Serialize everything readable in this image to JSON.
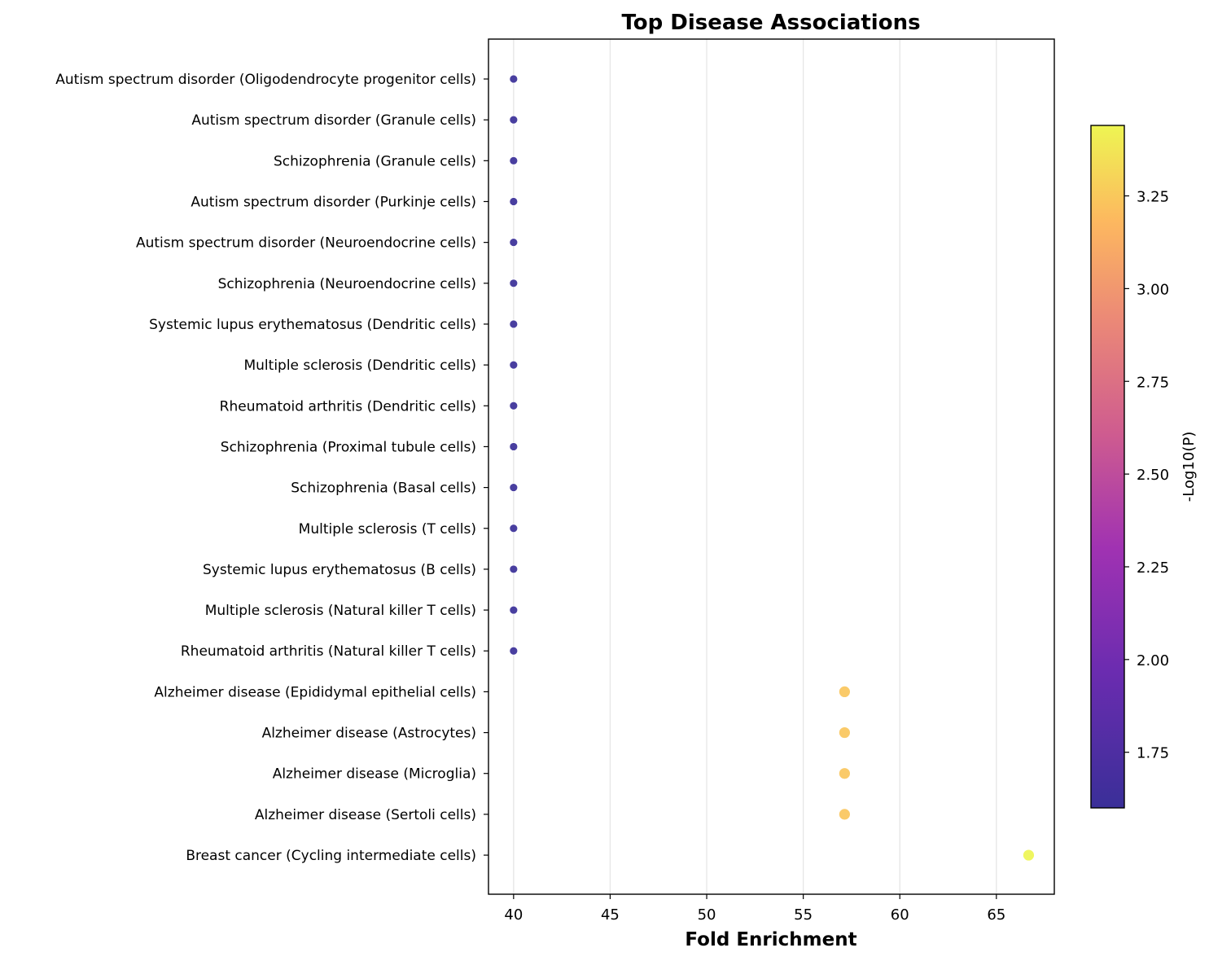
{
  "chart_data": {
    "type": "scatter",
    "title": "Top Disease Associations",
    "xlabel": "Fold Enrichment",
    "ylabel": "",
    "xlim": [
      38.7,
      68.0
    ],
    "xticks": [
      40,
      45,
      50,
      55,
      60,
      65
    ],
    "grid": "vertical",
    "categories": [
      "Autism spectrum disorder (Oligodendrocyte progenitor cells)",
      "Autism spectrum disorder (Granule cells)",
      "Schizophrenia (Granule cells)",
      "Autism spectrum disorder (Purkinje cells)",
      "Autism spectrum disorder (Neuroendocrine cells)",
      "Schizophrenia (Neuroendocrine cells)",
      "Systemic lupus erythematosus (Dendritic cells)",
      "Multiple sclerosis (Dendritic cells)",
      "Rheumatoid arthritis (Dendritic cells)",
      "Schizophrenia (Proximal tubule cells)",
      "Schizophrenia (Basal cells)",
      "Multiple sclerosis (T cells)",
      "Systemic lupus erythematosus (B cells)",
      "Multiple sclerosis (Natural killer T cells)",
      "Rheumatoid arthritis (Natural killer T cells)",
      "Alzheimer disease (Epididymal epithelial cells)",
      "Alzheimer disease (Astrocytes)",
      "Alzheimer disease (Microglia)",
      "Alzheimer disease (Sertoli cells)",
      "Breast cancer (Cycling intermediate cells)"
    ],
    "x": [
      40,
      40,
      40,
      40,
      40,
      40,
      40,
      40,
      40,
      40,
      40,
      40,
      40,
      40,
      40,
      57.14,
      57.14,
      57.14,
      57.14,
      66.67
    ],
    "color_values": [
      1.6,
      1.6,
      1.6,
      1.6,
      1.6,
      1.6,
      1.6,
      1.6,
      1.6,
      1.6,
      1.6,
      1.6,
      1.6,
      1.6,
      1.6,
      3.24,
      3.24,
      3.24,
      3.24,
      3.44
    ],
    "marker_sizes": [
      "small",
      "small",
      "small",
      "small",
      "small",
      "small",
      "small",
      "small",
      "small",
      "small",
      "small",
      "small",
      "small",
      "small",
      "small",
      "large",
      "large",
      "large",
      "large",
      "large"
    ],
    "colorbar": {
      "label": "-Log10(P)",
      "colormap": "plasma",
      "range": [
        1.6,
        3.44
      ],
      "ticks": [
        1.75,
        2.0,
        2.25,
        2.5,
        2.75,
        3.0,
        3.25
      ],
      "tick_labels": [
        "1.75",
        "2.00",
        "2.25",
        "2.50",
        "2.75",
        "3.00",
        "3.25"
      ],
      "placement": "right"
    }
  }
}
